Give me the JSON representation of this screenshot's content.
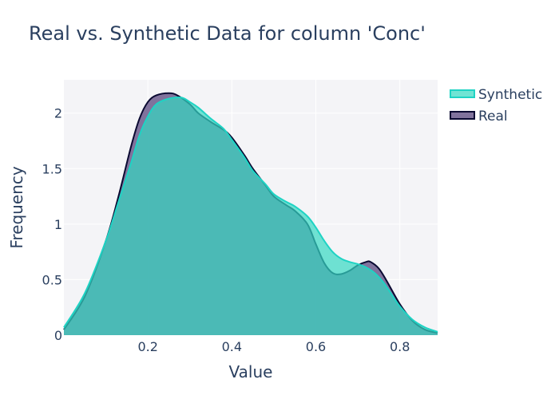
{
  "chart_data": {
    "type": "area",
    "title": "Real vs. Synthetic Data for column 'Conc'",
    "xlabel": "Value",
    "ylabel": "Frequency",
    "xlim": [
      0.0,
      0.89
    ],
    "ylim": [
      0,
      2.3
    ],
    "x_ticks": [
      0.2,
      0.4,
      0.6,
      0.8
    ],
    "x_tick_labels": [
      "0.2",
      "0.4",
      "0.6",
      "0.8"
    ],
    "y_ticks": [
      0,
      0.5,
      1,
      1.5,
      2
    ],
    "y_tick_labels": [
      "0",
      "0.5",
      "1",
      "1.5",
      "2"
    ],
    "grid": true,
    "legend_position": "top-right",
    "background_color": "#f4f4f7",
    "series": [
      {
        "name": "Real",
        "line_color": "#0a0a32",
        "fill_color": "#6b5b8c",
        "fill_opacity": 0.85,
        "x": [
          0.0,
          0.05,
          0.1,
          0.13,
          0.16,
          0.18,
          0.2,
          0.22,
          0.25,
          0.27,
          0.3,
          0.32,
          0.35,
          0.38,
          0.4,
          0.43,
          0.45,
          0.48,
          0.5,
          0.53,
          0.55,
          0.58,
          0.6,
          0.62,
          0.64,
          0.66,
          0.68,
          0.7,
          0.72,
          0.73,
          0.75,
          0.77,
          0.8,
          0.83,
          0.86,
          0.89
        ],
        "y": [
          0.05,
          0.35,
          0.85,
          1.25,
          1.7,
          1.95,
          2.1,
          2.16,
          2.18,
          2.16,
          2.08,
          2.0,
          1.92,
          1.85,
          1.78,
          1.62,
          1.5,
          1.35,
          1.25,
          1.17,
          1.12,
          1.0,
          0.82,
          0.65,
          0.56,
          0.55,
          0.58,
          0.63,
          0.66,
          0.66,
          0.6,
          0.48,
          0.28,
          0.13,
          0.05,
          0.02
        ]
      },
      {
        "name": "Synthetic",
        "line_color": "#1fd3c4",
        "fill_color": "#35d8c2",
        "fill_opacity": 0.7,
        "x": [
          0.0,
          0.05,
          0.1,
          0.13,
          0.16,
          0.18,
          0.2,
          0.22,
          0.25,
          0.28,
          0.3,
          0.32,
          0.35,
          0.38,
          0.4,
          0.43,
          0.45,
          0.48,
          0.5,
          0.53,
          0.55,
          0.58,
          0.6,
          0.62,
          0.64,
          0.66,
          0.68,
          0.7,
          0.72,
          0.74,
          0.76,
          0.78,
          0.8,
          0.83,
          0.86,
          0.89
        ],
        "y": [
          0.07,
          0.38,
          0.85,
          1.2,
          1.55,
          1.8,
          1.97,
          2.08,
          2.13,
          2.14,
          2.1,
          2.05,
          1.95,
          1.86,
          1.76,
          1.6,
          1.48,
          1.36,
          1.27,
          1.2,
          1.16,
          1.07,
          0.97,
          0.85,
          0.75,
          0.69,
          0.66,
          0.64,
          0.61,
          0.56,
          0.48,
          0.37,
          0.26,
          0.14,
          0.07,
          0.03
        ]
      }
    ],
    "legend_order": [
      "Synthetic",
      "Real"
    ]
  }
}
